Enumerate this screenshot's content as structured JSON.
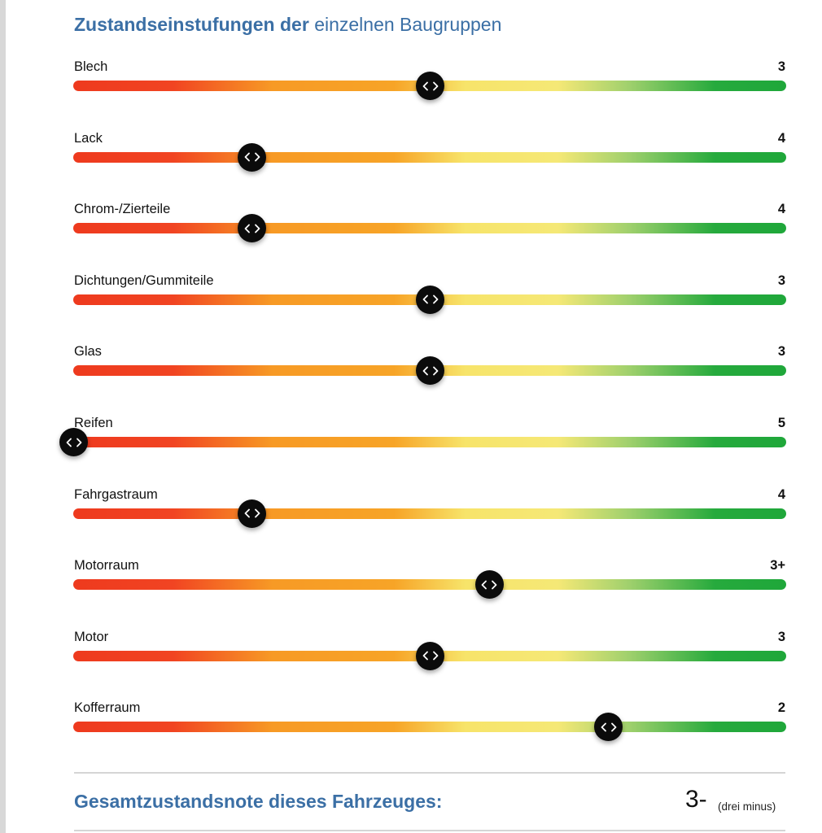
{
  "section": {
    "title_bold": "Zustandseinstufungen der",
    "title_light": "einzelnen Baugruppen"
  },
  "rows": [
    {
      "label": "Blech",
      "value": "3",
      "level": 0.5
    },
    {
      "label": "Lack",
      "value": "4",
      "level": 0.25
    },
    {
      "label": "Chrom-/Zierteile",
      "value": "4",
      "level": 0.25
    },
    {
      "label": "Dichtungen/Gummiteile",
      "value": "3",
      "level": 0.5
    },
    {
      "label": "Glas",
      "value": "3",
      "level": 0.5
    },
    {
      "label": "Reifen",
      "value": "5",
      "level": 0.0
    },
    {
      "label": "Fahrgastraum",
      "value": "4",
      "level": 0.25
    },
    {
      "label": "Motorraum",
      "value": "3+",
      "level": 0.583
    },
    {
      "label": "Motor",
      "value": "3",
      "level": 0.5
    },
    {
      "label": "Kofferraum",
      "value": "2",
      "level": 0.75
    }
  ],
  "total": {
    "label": "Gesamtzustandsnote dieses Fahrzeuges:",
    "value": "3-",
    "note": "(drei minus)"
  },
  "colors": {
    "heading": "#3b6fa5",
    "bad": "#ee3a1e",
    "medium": "#f7a427",
    "fair": "#f7e46a",
    "good": "#1fa73a",
    "handle": "#0b0b0b"
  },
  "icons": {
    "handle": "chevron-left-right-icon"
  }
}
